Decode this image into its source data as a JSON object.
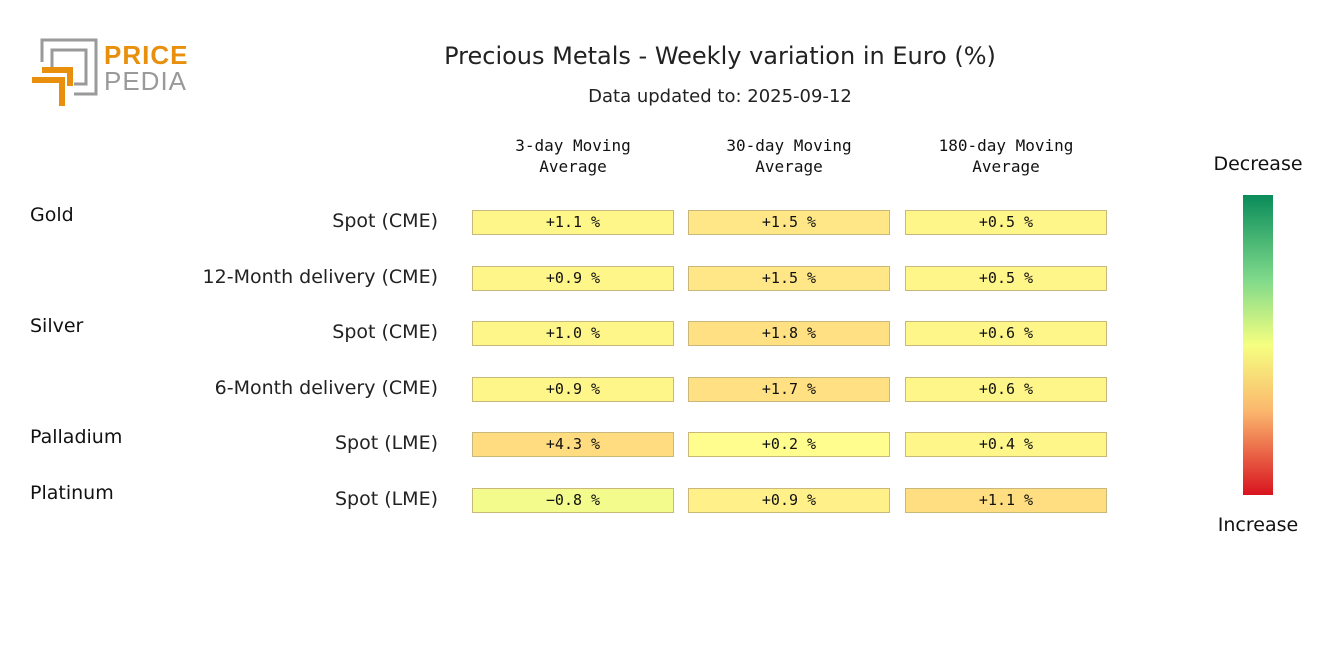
{
  "logo": {
    "line1": "PRICE",
    "line2": "PEDIA",
    "accent": "#e8900e",
    "gray": "#9a9a9a"
  },
  "title": "Precious Metals - Weekly variation in Euro (%)",
  "subtitle": "Data updated to: 2025-09-12",
  "columns": [
    "3-day Moving\nAverage",
    "30-day Moving\nAverage",
    "180-day Moving\nAverage"
  ],
  "legend": {
    "top": "Decrease",
    "bottom": "Increase"
  },
  "chart_data": {
    "type": "heatmap",
    "title": "Precious Metals - Weekly variation in Euro (%)",
    "columns": [
      "3-day Moving Average",
      "30-day Moving Average",
      "180-day Moving Average"
    ],
    "groups": [
      {
        "name": "Gold",
        "rows": [
          {
            "label": "Spot (CME)",
            "values": [
              1.1,
              1.5,
              0.5
            ],
            "texts": [
              "+1.1 %",
              "+1.5 %",
              "+0.5 %"
            ]
          },
          {
            "label": "12-Month delivery (CME)",
            "values": [
              0.9,
              1.5,
              0.5
            ],
            "texts": [
              "+0.9 %",
              "+1.5 %",
              "+0.5 %"
            ]
          }
        ]
      },
      {
        "name": "Silver",
        "rows": [
          {
            "label": "Spot (CME)",
            "values": [
              1.0,
              1.8,
              0.6
            ],
            "texts": [
              "+1.0 %",
              "+1.8 %",
              "+0.6 %"
            ]
          },
          {
            "label": "6-Month delivery (CME)",
            "values": [
              0.9,
              1.7,
              0.6
            ],
            "texts": [
              "+0.9 %",
              "+1.7 %",
              "+0.6 %"
            ]
          }
        ]
      },
      {
        "name": "Palladium",
        "rows": [
          {
            "label": "Spot (LME)",
            "values": [
              4.3,
              0.2,
              0.4
            ],
            "texts": [
              "+4.3 %",
              "+0.2 %",
              "+0.4 %"
            ]
          }
        ]
      },
      {
        "name": "Platinum",
        "rows": [
          {
            "label": "Spot (LME)",
            "values": [
              -0.8,
              0.9,
              1.1
            ],
            "texts": [
              "−0.8 %",
              "+0.9 %",
              "+1.1 %"
            ]
          }
        ]
      }
    ],
    "colors": [
      [
        "#fff68a",
        "#ffe686",
        "#fff68a"
      ],
      [
        "#fff68a",
        "#ffe686",
        "#fff68a"
      ],
      [
        "#fff68a",
        "#ffe083",
        "#fff68a"
      ],
      [
        "#fff68a",
        "#ffe083",
        "#fff68a"
      ],
      [
        "#ffdc80",
        "#fffd8e",
        "#fff68a"
      ],
      [
        "#f2fb8c",
        "#fff08a",
        "#ffde82"
      ]
    ],
    "legend_placement": "right"
  }
}
